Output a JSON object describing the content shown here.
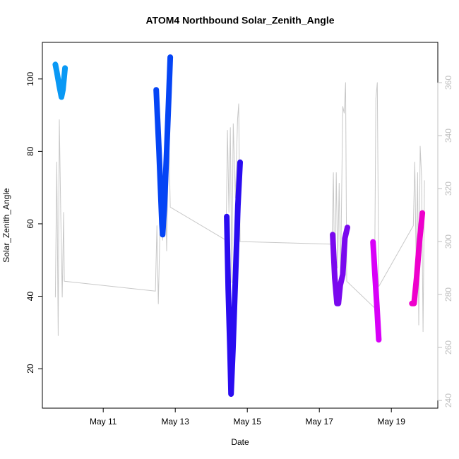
{
  "chart_data": {
    "type": "line",
    "title": "ATOM4 Northbound Solar_Zenith_Angle",
    "x_label": "Date",
    "y_label": "Solar_Zenith_Angle",
    "xlim": [
      9.31,
      20.29
    ],
    "xticks": [
      {
        "value": 11,
        "label": "May 11"
      },
      {
        "value": 13,
        "label": "May 13"
      },
      {
        "value": 15,
        "label": "May 15"
      },
      {
        "value": 17,
        "label": "May 17"
      },
      {
        "value": 19,
        "label": "May 19"
      }
    ],
    "ylim": [
      9.1,
      110.1
    ],
    "yticks": [
      20,
      40,
      60,
      80,
      100
    ],
    "y2lim": [
      237.1,
      375.2
    ],
    "y2ticks": [
      240,
      260,
      280,
      300,
      320,
      340,
      360
    ],
    "y2_color": "#c0c0c0",
    "series": [
      {
        "color": "#c8c8c8",
        "axis": "y2",
        "x": [
          9.67,
          9.71,
          9.75,
          9.78,
          9.82,
          9.86,
          9.9,
          9.92,
          12.45,
          12.49,
          12.53,
          12.59,
          12.65,
          12.71,
          12.76,
          12.82,
          12.86,
          14.41,
          14.45,
          14.49,
          14.53,
          14.57,
          14.61,
          14.67,
          14.73,
          14.76,
          14.8,
          17.35,
          17.39,
          17.43,
          17.47,
          17.51,
          17.55,
          17.59,
          17.65,
          17.69,
          17.73,
          17.76,
          18.53,
          18.57,
          18.61,
          18.65,
          19.61,
          19.65,
          19.69,
          19.73,
          19.76,
          19.8,
          19.84,
          19.88,
          19.92
        ],
        "values": [
          279,
          330,
          264.5,
          346,
          311,
          279,
          311,
          285,
          281.3,
          306,
          276.5,
          314,
          300.5,
          338,
          296.5,
          343,
          313,
          300.5,
          342,
          311,
          343,
          284.5,
          344.5,
          316.5,
          346,
          352,
          300,
          299,
          326,
          279,
          326,
          290,
          322,
          286,
          351,
          348.5,
          360,
          285,
          275,
          354,
          360,
          283,
          306,
          330,
          290,
          326,
          268.5,
          336,
          324.5,
          266,
          323
        ]
      },
      {
        "color": "#0a99f5",
        "axis": "y",
        "x": [
          9.67,
          9.71,
          9.78,
          9.84,
          9.88,
          9.94
        ],
        "values": [
          104,
          102,
          98,
          95,
          97,
          103
        ]
      },
      {
        "color": "#0545f5",
        "axis": "y",
        "x": [
          12.47,
          12.55,
          12.63,
          12.65,
          12.7,
          12.76,
          12.82,
          12.86
        ],
        "values": [
          97,
          80,
          60,
          57,
          65,
          80,
          95,
          106
        ]
      },
      {
        "color": "#2a0cf0",
        "axis": "y",
        "x": [
          14.43,
          14.47,
          14.52,
          14.55,
          14.6,
          14.67,
          14.74,
          14.8
        ],
        "values": [
          62,
          42,
          25,
          13,
          25,
          45,
          65,
          77
        ]
      },
      {
        "color": "#7a08ee",
        "axis": "y",
        "x": [
          17.37,
          17.43,
          17.49,
          17.53,
          17.58,
          17.65,
          17.71,
          17.78
        ],
        "values": [
          57,
          45,
          38,
          38,
          43,
          46,
          56,
          59
        ]
      },
      {
        "color": "#d800f8",
        "axis": "y",
        "x": [
          18.49,
          18.55,
          18.6,
          18.65
        ],
        "values": [
          55,
          45,
          37,
          28
        ]
      },
      {
        "color": "#ee00cc",
        "axis": "y",
        "x": [
          19.57,
          19.63,
          19.7,
          19.78,
          19.86
        ],
        "values": [
          38,
          38,
          45,
          55,
          63
        ]
      }
    ]
  }
}
